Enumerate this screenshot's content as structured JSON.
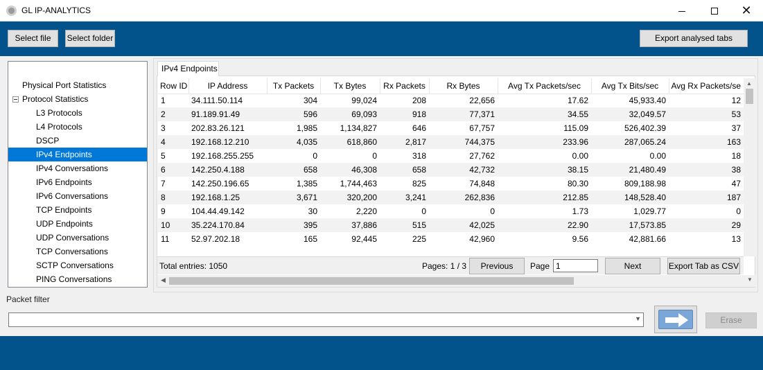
{
  "window": {
    "title": "GL IP-ANALYTICS",
    "controls": {
      "minimize": "minimize",
      "maximize": "maximize",
      "close": "✕"
    }
  },
  "toolbar": {
    "select_file": "Select file",
    "select_folder": "Select folder",
    "export_analysed_tabs": "Export analysed tabs"
  },
  "tree": {
    "items": [
      {
        "label": "Physical Port Statistics",
        "level": 0
      },
      {
        "label": "Protocol Statistics",
        "level": 0,
        "expander": "−"
      },
      {
        "label": "L3 Protocols",
        "level": 1
      },
      {
        "label": "L4 Protocols",
        "level": 1
      },
      {
        "label": "DSCP",
        "level": 1
      },
      {
        "label": "IPv4 Endpoints",
        "level": 1,
        "selected": true
      },
      {
        "label": "IPv4 Conversations",
        "level": 1
      },
      {
        "label": "IPv6 Endpoints",
        "level": 1
      },
      {
        "label": "IPv6 Conversations",
        "level": 1
      },
      {
        "label": "TCP Endpoints",
        "level": 1
      },
      {
        "label": "UDP Endpoints",
        "level": 1
      },
      {
        "label": "UDP Conversations",
        "level": 1
      },
      {
        "label": "TCP Conversations",
        "level": 1
      },
      {
        "label": "SCTP Conversations",
        "level": 1
      },
      {
        "label": "PING Conversations",
        "level": 1
      }
    ]
  },
  "tab": {
    "label": "IPv4 Endpoints"
  },
  "table": {
    "columns": [
      "Row ID",
      "IP Address",
      "Tx Packets",
      "Tx Bytes",
      "Rx Packets",
      "Rx Bytes",
      "Avg Tx Packets/sec",
      "Avg Tx Bits/sec",
      "Avg Rx Packets/se"
    ],
    "rows": [
      [
        "1",
        "34.111.50.114",
        "304",
        "99,024",
        "208",
        "22,656",
        "17.62",
        "45,933.40",
        "12"
      ],
      [
        "2",
        "91.189.91.49",
        "596",
        "69,093",
        "918",
        "77,371",
        "34.55",
        "32,049.57",
        "53"
      ],
      [
        "3",
        "202.83.26.121",
        "1,985",
        "1,134,827",
        "646",
        "67,757",
        "115.09",
        "526,402.39",
        "37"
      ],
      [
        "4",
        "192.168.12.210",
        "4,035",
        "618,860",
        "2,817",
        "744,375",
        "233.96",
        "287,065.24",
        "163"
      ],
      [
        "5",
        "192.168.255.255",
        "0",
        "0",
        "318",
        "27,762",
        "0.00",
        "0.00",
        "18"
      ],
      [
        "6",
        "142.250.4.188",
        "658",
        "46,308",
        "658",
        "42,732",
        "38.15",
        "21,480.49",
        "38"
      ],
      [
        "7",
        "142.250.196.65",
        "1,385",
        "1,744,463",
        "825",
        "74,848",
        "80.30",
        "809,188.98",
        "47"
      ],
      [
        "8",
        "192.168.1.25",
        "3,671",
        "320,200",
        "3,241",
        "262,836",
        "212.85",
        "148,528.40",
        "187"
      ],
      [
        "9",
        "104.44.49.142",
        "30",
        "2,220",
        "0",
        "0",
        "1.73",
        "1,029.77",
        "0"
      ],
      [
        "10",
        "35.224.170.84",
        "395",
        "37,886",
        "515",
        "42,025",
        "22.90",
        "17,573.85",
        "29"
      ],
      [
        "11",
        "52.97.202.18",
        "165",
        "92,445",
        "225",
        "42,960",
        "9.56",
        "42,881.66",
        "13"
      ]
    ]
  },
  "pager": {
    "total_entries": "Total entries: 1050",
    "pages": "Pages: 1 / 3",
    "previous": "Previous",
    "page_label": "Page",
    "page_value": "1",
    "next": "Next",
    "export_csv": "Export Tab as CSV"
  },
  "filter": {
    "label": "Packet filter",
    "value": "",
    "go_icon": "arrow-right-icon",
    "erase": "Erase"
  },
  "colors": {
    "brand_blue": "#02528b",
    "selection": "#0078d7"
  }
}
